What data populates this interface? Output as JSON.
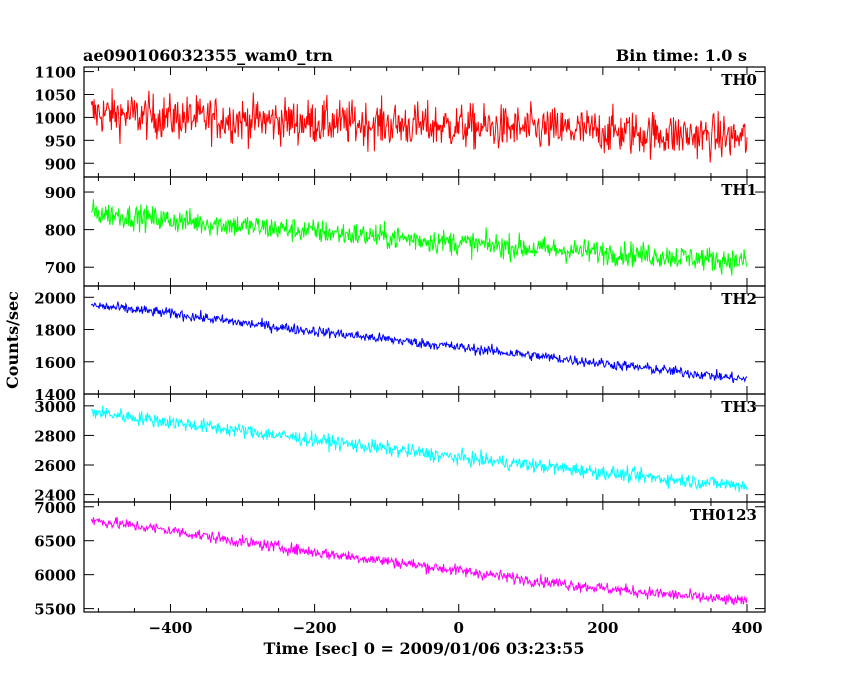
{
  "chart_data": {
    "type": "line",
    "title": "ae090106032355_wam0_trn",
    "subtitle": "Bin time: 1.0 s",
    "xlabel": "Time [sec] 0 = 2009/01/06 03:23:55",
    "ylabel": "Counts/sec",
    "xlim": [
      -520,
      425
    ],
    "xticks": [
      -400,
      -200,
      0,
      200,
      400
    ],
    "grid": false,
    "panels": [
      {
        "name": "TH0",
        "color": "#ff0000",
        "ylim": [
          870,
          1110
        ],
        "yticks": [
          900,
          950,
          1000,
          1050,
          1100
        ],
        "x": [
          -510,
          -400,
          -300,
          -200,
          -100,
          0,
          100,
          200,
          300,
          400
        ],
        "y": [
          1010,
          1000,
          995,
          990,
          985,
          980,
          975,
          970,
          962,
          955
        ],
        "noise": 45
      },
      {
        "name": "TH1",
        "color": "#00ff00",
        "ylim": [
          650,
          940
        ],
        "yticks": [
          700,
          800,
          900
        ],
        "x": [
          -510,
          -400,
          -300,
          -200,
          -100,
          0,
          100,
          200,
          300,
          400
        ],
        "y": [
          845,
          825,
          810,
          795,
          780,
          765,
          750,
          740,
          728,
          715
        ],
        "noise": 30
      },
      {
        "name": "TH2",
        "color": "#0000ff",
        "ylim": [
          1400,
          2070
        ],
        "yticks": [
          1400,
          1600,
          1800,
          2000
        ],
        "x": [
          -510,
          -400,
          -300,
          -200,
          -100,
          0,
          100,
          200,
          300,
          400
        ],
        "y": [
          1950,
          1900,
          1840,
          1790,
          1740,
          1690,
          1640,
          1590,
          1540,
          1490
        ],
        "noise": 30
      },
      {
        "name": "TH3",
        "color": "#00ffff",
        "ylim": [
          2350,
          3080
        ],
        "yticks": [
          2400,
          2600,
          2800,
          3000
        ],
        "x": [
          -510,
          -400,
          -300,
          -200,
          -100,
          0,
          100,
          200,
          300,
          400
        ],
        "y": [
          2960,
          2890,
          2830,
          2770,
          2710,
          2650,
          2600,
          2550,
          2500,
          2460
        ],
        "noise": 45
      },
      {
        "name": "TH0123",
        "color": "#ff00ff",
        "ylim": [
          5450,
          7070
        ],
        "yticks": [
          5500,
          6000,
          6500,
          7000
        ],
        "x": [
          -510,
          -400,
          -300,
          -200,
          -100,
          0,
          100,
          200,
          300,
          400
        ],
        "y": [
          6800,
          6650,
          6480,
          6330,
          6200,
          6060,
          5920,
          5800,
          5700,
          5600
        ],
        "noise": 80
      }
    ]
  }
}
